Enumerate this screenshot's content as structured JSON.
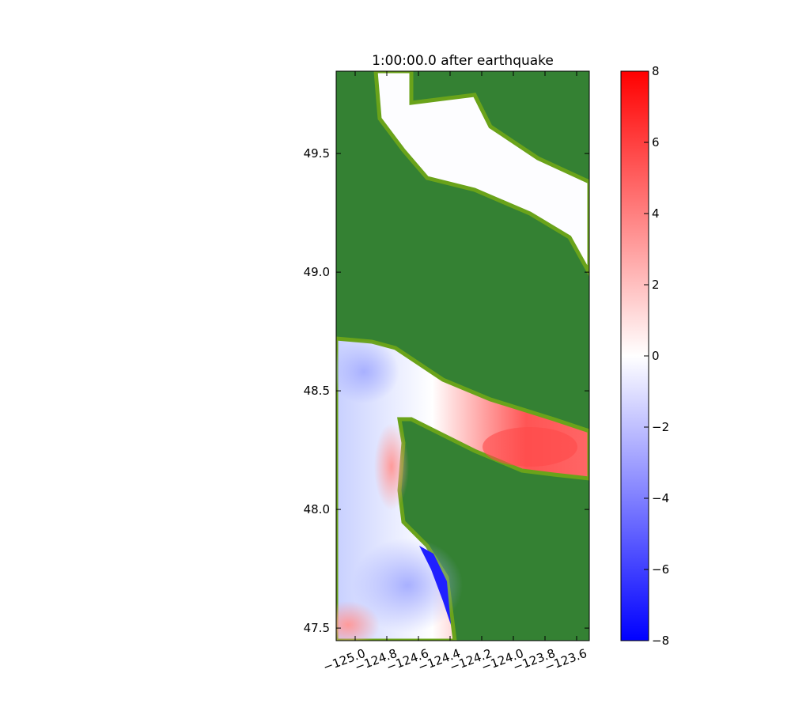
{
  "chart_data": {
    "type": "heatmap",
    "title": "1:00:00.0 after earthquake",
    "xlim": [
      -125.12,
      -123.52
    ],
    "ylim": [
      47.447,
      49.847
    ],
    "xticks": [
      {
        "value": -125.0,
        "label": "−125.0"
      },
      {
        "value": -124.8,
        "label": "−124.8"
      },
      {
        "value": -124.6,
        "label": "−124.6"
      },
      {
        "value": -124.4,
        "label": "−124.4"
      },
      {
        "value": -124.2,
        "label": "−124.2"
      },
      {
        "value": -124.0,
        "label": "−124.0"
      },
      {
        "value": -123.8,
        "label": "−123.8"
      },
      {
        "value": -123.6,
        "label": "−123.6"
      }
    ],
    "yticks": [
      47.5,
      {
        "value": 48,
        "label": "48.0"
      },
      48.5,
      {
        "value": 49,
        "label": "49.0"
      },
      49.5
    ],
    "colorbar": {
      "clim": [
        -8,
        8
      ],
      "colors": [
        "#0000ff",
        "#ffffff",
        "#ff0000"
      ],
      "ticks": [
        {
          "value": -8,
          "label": "−8"
        },
        {
          "value": -6,
          "label": "−6"
        },
        {
          "value": -4,
          "label": "−4"
        },
        {
          "value": -2,
          "label": "−2"
        },
        0,
        2,
        4,
        6,
        8
      ]
    }
  }
}
